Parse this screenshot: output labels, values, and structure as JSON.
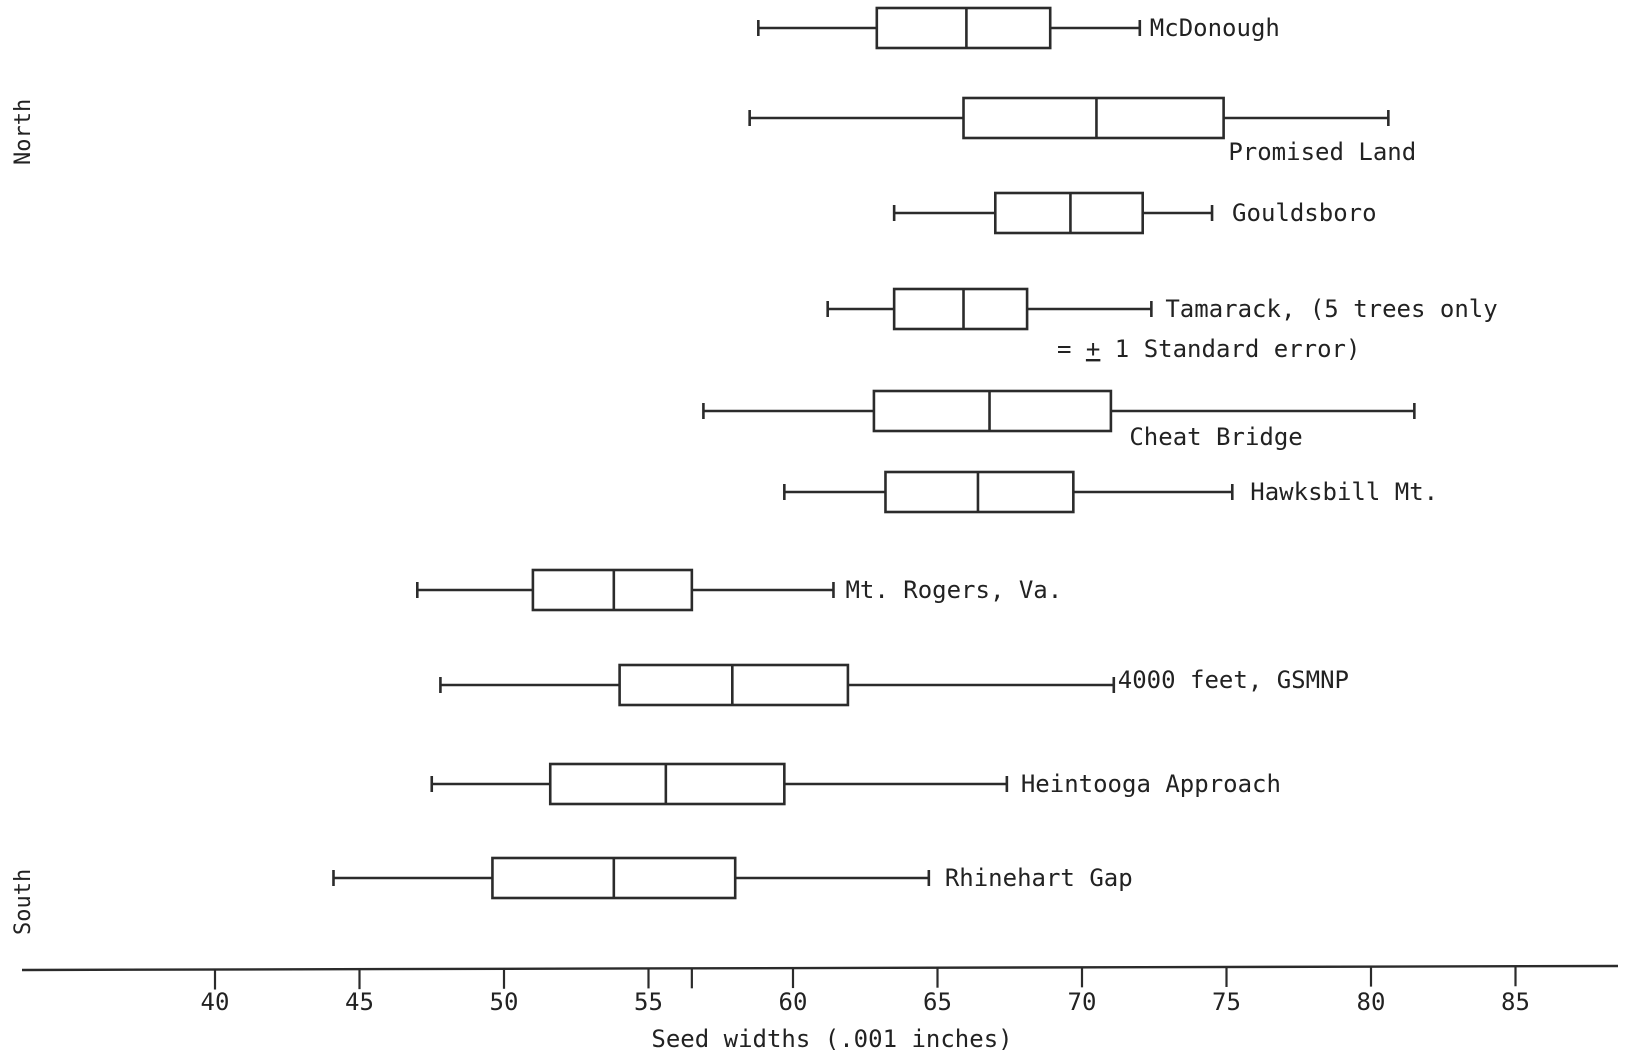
{
  "chart_data": {
    "type": "boxplot",
    "orientation": "horizontal",
    "xlabel": "Seed widths (.001 inches)",
    "xlim": [
      35.5,
      87
    ],
    "ticks": [
      40,
      45,
      50,
      55,
      60,
      65,
      70,
      75,
      80,
      85
    ],
    "extra_tick_marks": [
      56.5
    ],
    "side_labels": {
      "top": "North",
      "bottom": "South"
    },
    "legend_note": "= ± 1 Standard error)",
    "legend_note_parts": {
      "prefix": "= ",
      "pm": "+",
      "suffix": " 1 Standard error)"
    },
    "series": [
      {
        "name": "McDonough",
        "whisker_low": 58.8,
        "box_low": 62.9,
        "median": 66.0,
        "box_high": 68.9,
        "whisker_high": 72.0
      },
      {
        "name": "Promised Land",
        "whisker_low": 58.5,
        "box_low": 65.9,
        "median": 70.5,
        "box_high": 74.9,
        "whisker_high": 80.6
      },
      {
        "name": "Gouldsboro",
        "whisker_low": 63.5,
        "box_low": 67.0,
        "median": 69.6,
        "box_high": 72.1,
        "whisker_high": 74.5
      },
      {
        "name": "Tamarack, (5 trees only",
        "whisker_low": 61.2,
        "box_low": 63.5,
        "median": 65.9,
        "box_high": 68.1,
        "whisker_high": 72.4
      },
      {
        "name": "Cheat Bridge",
        "whisker_low": 56.9,
        "box_low": 62.8,
        "median": 66.8,
        "box_high": 71.0,
        "whisker_high": 81.5
      },
      {
        "name": "Hawksbill Mt.",
        "whisker_low": 59.7,
        "box_low": 63.2,
        "median": 66.4,
        "box_high": 69.7,
        "whisker_high": 75.2
      },
      {
        "name": "Mt. Rogers, Va.",
        "whisker_low": 47.0,
        "box_low": 51.0,
        "median": 53.8,
        "box_high": 56.5,
        "whisker_high": 61.4
      },
      {
        "name": "4000 feet, GSMNP",
        "whisker_low": 47.8,
        "box_low": 54.0,
        "median": 57.9,
        "box_high": 61.9,
        "whisker_high": 71.1
      },
      {
        "name": "Heintooga Approach",
        "whisker_low": 47.5,
        "box_low": 51.6,
        "median": 55.6,
        "box_high": 59.7,
        "whisker_high": 67.4
      },
      {
        "name": "Rhinehart Gap",
        "whisker_low": 44.1,
        "box_low": 49.6,
        "median": 53.8,
        "box_high": 58.0,
        "whisker_high": 64.7
      }
    ]
  }
}
